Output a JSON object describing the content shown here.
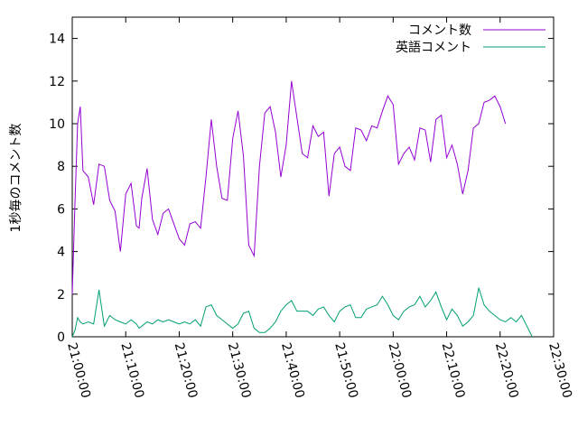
{
  "chart_data": {
    "type": "line",
    "title": "",
    "xlabel": "",
    "ylabel": "1秒毎のコメント数",
    "ylim": [
      0,
      15
    ],
    "yticks": [
      0,
      2,
      4,
      6,
      8,
      10,
      12,
      14
    ],
    "xlim": [
      "21:00:00",
      "22:30:00"
    ],
    "xticks": [
      "21:00:00",
      "21:10:00",
      "21:20:00",
      "21:30:00",
      "21:40:00",
      "21:50:00",
      "22:00:00",
      "22:10:00",
      "22:20:00",
      "22:30:00"
    ],
    "grid": false,
    "legend_position": "top-right",
    "x": [
      "21:00:00",
      "21:00:30",
      "21:01:00",
      "21:01:30",
      "21:02:00",
      "21:03:00",
      "21:04:00",
      "21:05:00",
      "21:06:00",
      "21:07:00",
      "21:08:00",
      "21:09:00",
      "21:10:00",
      "21:11:00",
      "21:12:00",
      "21:12:30",
      "21:13:00",
      "21:14:00",
      "21:15:00",
      "21:16:00",
      "21:17:00",
      "21:18:00",
      "21:19:00",
      "21:20:00",
      "21:21:00",
      "21:22:00",
      "21:23:00",
      "21:24:00",
      "21:25:00",
      "21:26:00",
      "21:27:00",
      "21:28:00",
      "21:29:00",
      "21:30:00",
      "21:31:00",
      "21:32:00",
      "21:33:00",
      "21:34:00",
      "21:35:00",
      "21:36:00",
      "21:37:00",
      "21:38:00",
      "21:39:00",
      "21:40:00",
      "21:41:00",
      "21:42:00",
      "21:43:00",
      "21:44:00",
      "21:45:00",
      "21:46:00",
      "21:47:00",
      "21:48:00",
      "21:49:00",
      "21:50:00",
      "21:51:00",
      "21:52:00",
      "21:53:00",
      "21:54:00",
      "21:55:00",
      "21:56:00",
      "21:57:00",
      "21:58:00",
      "21:59:00",
      "22:00:00",
      "22:01:00",
      "22:02:00",
      "22:03:00",
      "22:04:00",
      "22:05:00",
      "22:06:00",
      "22:07:00",
      "22:08:00",
      "22:09:00",
      "22:10:00",
      "22:11:00",
      "22:12:00",
      "22:13:00",
      "22:14:00",
      "22:15:00",
      "22:16:00",
      "22:17:00",
      "22:18:00",
      "22:19:00",
      "22:20:00",
      "22:21:00",
      "22:22:00",
      "22:23:00",
      "22:24:00",
      "22:25:00",
      "22:26:00"
    ],
    "series": [
      {
        "name": "コメント数",
        "color": "#9400d3",
        "values": [
          2.0,
          6.2,
          10.0,
          10.8,
          7.8,
          7.5,
          6.2,
          8.1,
          8.0,
          6.4,
          5.9,
          4.0,
          6.7,
          7.2,
          5.2,
          5.1,
          6.5,
          7.9,
          5.5,
          4.8,
          5.8,
          6.0,
          5.3,
          4.6,
          4.3,
          5.3,
          5.4,
          5.1,
          7.5,
          10.2,
          8.0,
          6.5,
          6.4,
          9.3,
          10.6,
          8.5,
          4.3,
          3.8,
          8.0,
          10.5,
          10.8,
          9.6,
          7.5,
          9.0,
          12.0,
          10.3,
          8.6,
          8.4,
          9.9,
          9.4,
          9.6,
          6.6,
          8.6,
          8.9,
          8.0,
          7.8,
          9.8,
          9.7,
          9.2,
          9.9,
          9.8,
          10.6,
          11.3,
          10.9,
          8.1,
          8.6,
          8.9,
          8.3,
          9.8,
          9.7,
          8.2,
          10.2,
          10.4,
          8.4,
          9.0,
          8.1,
          6.7,
          7.8,
          9.8,
          10.0,
          11.0,
          11.1,
          11.3,
          10.8,
          10.0,
          null,
          null,
          null,
          null,
          null
        ]
      },
      {
        "name": "英語コメント",
        "color": "#009e73",
        "values": [
          0.0,
          0.3,
          0.9,
          0.7,
          0.6,
          0.7,
          0.6,
          2.2,
          0.5,
          1.0,
          0.8,
          0.7,
          0.6,
          0.8,
          0.6,
          0.4,
          0.5,
          0.7,
          0.6,
          0.8,
          0.7,
          0.8,
          0.7,
          0.6,
          0.7,
          0.6,
          0.8,
          0.5,
          1.4,
          1.5,
          1.0,
          0.8,
          0.6,
          0.4,
          0.6,
          1.1,
          1.2,
          0.4,
          0.2,
          0.2,
          0.4,
          0.7,
          1.2,
          1.5,
          1.7,
          1.2,
          1.2,
          1.2,
          1.0,
          1.3,
          1.4,
          1.0,
          0.7,
          1.2,
          1.4,
          1.5,
          0.9,
          0.9,
          1.3,
          1.4,
          1.5,
          1.9,
          1.5,
          1.0,
          0.8,
          1.2,
          1.4,
          1.5,
          1.9,
          1.4,
          1.7,
          2.1,
          1.4,
          0.8,
          1.3,
          1.0,
          0.5,
          0.7,
          1.0,
          2.3,
          1.5,
          1.2,
          1.0,
          0.8,
          0.7,
          0.9,
          0.7,
          1.0,
          0.5,
          0.0
        ]
      }
    ]
  }
}
